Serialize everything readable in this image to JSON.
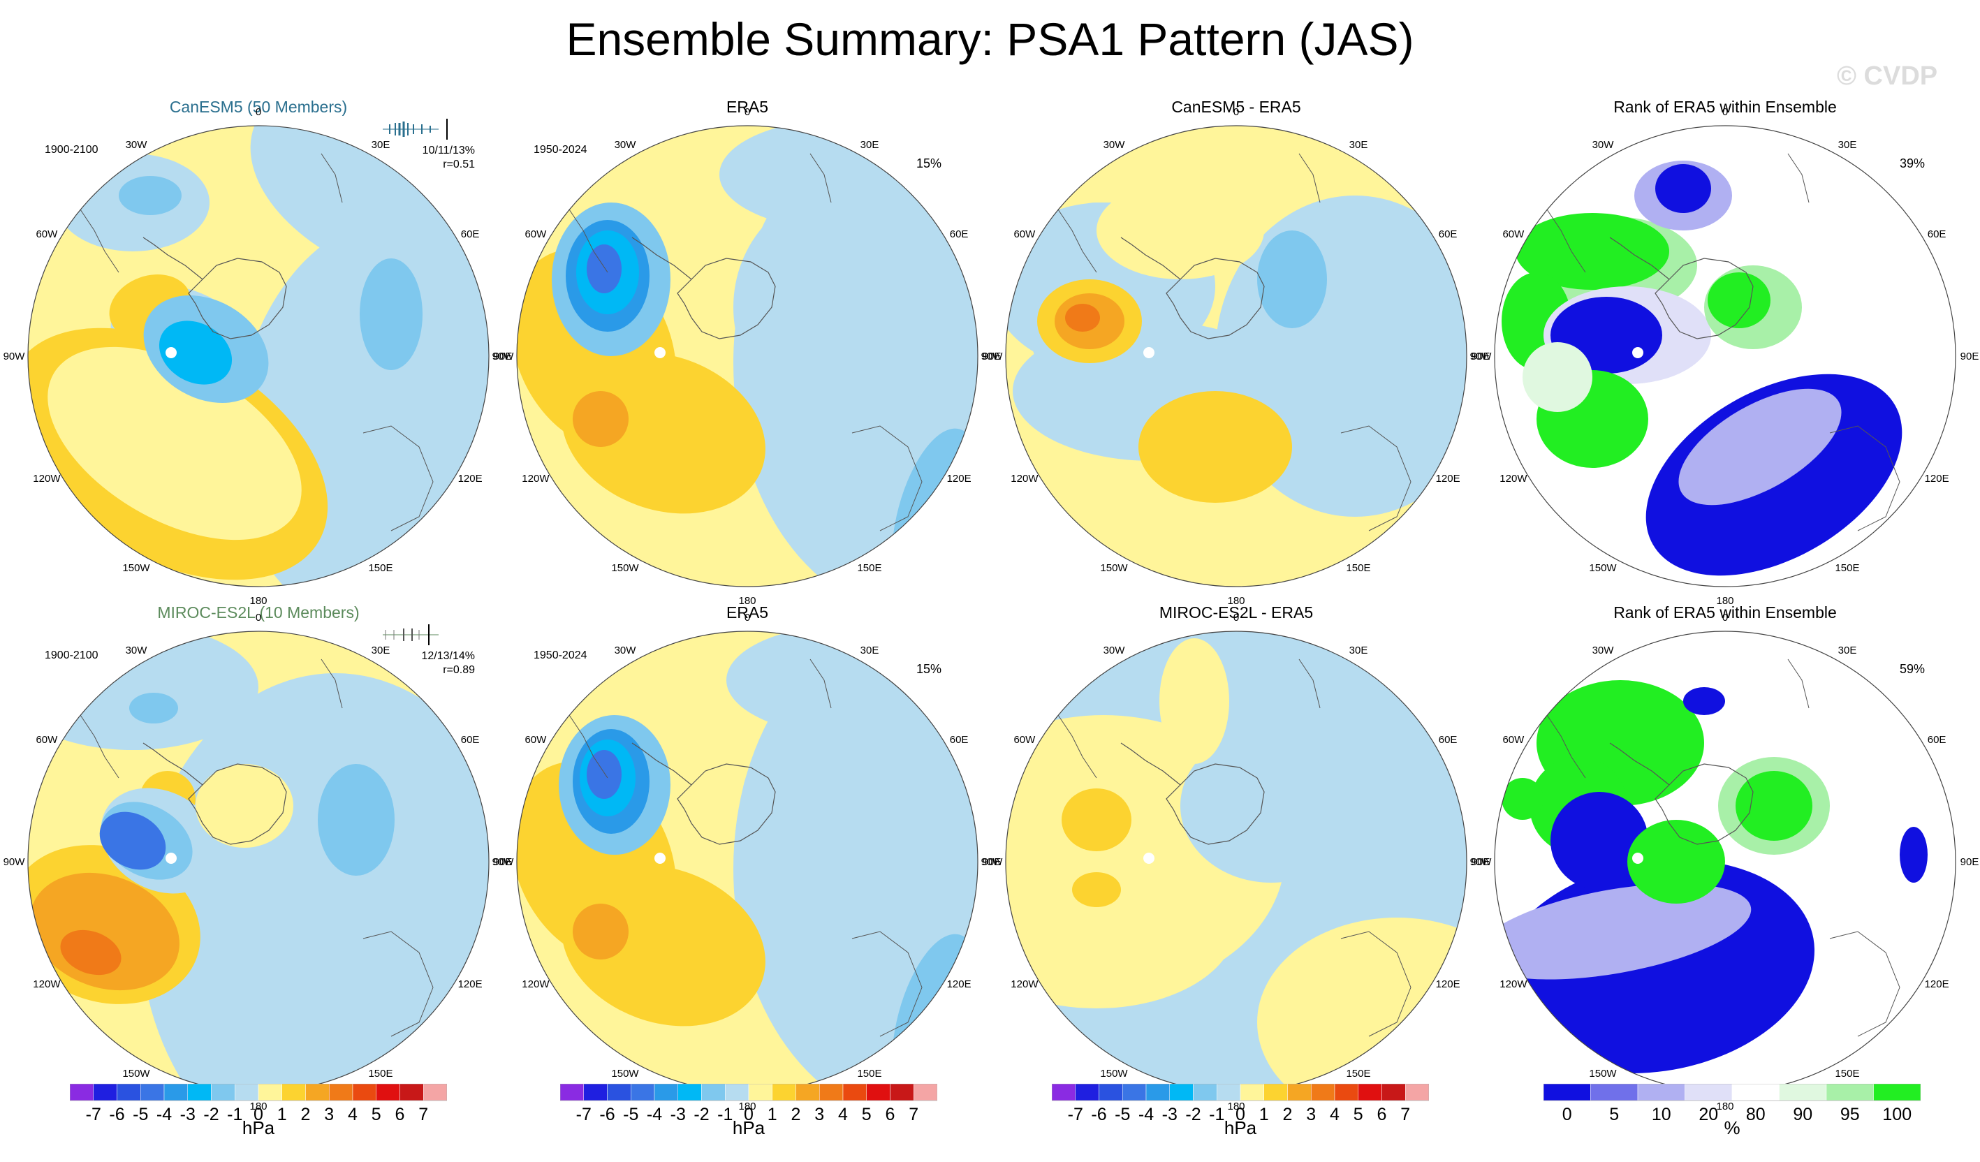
{
  "figure": {
    "title": "Ensemble Summary: PSA1 Pattern (JAS)",
    "watermark": "© CVDP"
  },
  "longitude_labels": [
    "0",
    "30E",
    "60E",
    "90E",
    "120E",
    "150E",
    "180",
    "150W",
    "120W",
    "90W",
    "60W",
    "30W"
  ],
  "rows": [
    {
      "model_title": "CanESM5 (50 Members)",
      "model_years": "1900-2100",
      "model_stats_line1": "10/11/13%",
      "model_stats_line2": "r=0.51",
      "obs_title": "ERA5",
      "obs_years": "1950-2024",
      "obs_pct": "15%",
      "diff_title": "CanESM5 - ERA5",
      "rank_title": "Rank of ERA5 within Ensemble",
      "rank_pct": "39%"
    },
    {
      "model_title": "MIROC-ES2L (10 Members)",
      "model_years": "1900-2100",
      "model_stats_line1": "12/13/14%",
      "model_stats_line2": "r=0.89",
      "obs_title": "ERA5",
      "obs_years": "1950-2024",
      "obs_pct": "15%",
      "diff_title": "MIROC-ES2L - ERA5",
      "rank_title": "Rank of ERA5 within Ensemble",
      "rank_pct": "59%"
    }
  ],
  "colorbars": {
    "hpa": {
      "unit": "hPa",
      "labels": [
        "-7",
        "-6",
        "-5",
        "-4",
        "-3",
        "-2",
        "-1",
        "0",
        "1",
        "2",
        "3",
        "4",
        "5",
        "6",
        "7"
      ],
      "colors": [
        "#8a2be2",
        "#1f1fe0",
        "#2a52e0",
        "#3a75e5",
        "#2a9ae8",
        "#00b8f5",
        "#7fc8ee",
        "#b6dcf0",
        "#fff59a",
        "#fcd330",
        "#f5a623",
        "#f07a18",
        "#ea4a10",
        "#e01010",
        "#c81818",
        "#f4a5a5"
      ]
    },
    "rank": {
      "unit": "%",
      "labels": [
        "0",
        "5",
        "10",
        "20",
        "80",
        "90",
        "95",
        "100"
      ],
      "colors": [
        "#1010e0",
        "#7070ea",
        "#b0b0f2",
        "#e0e0f8",
        "#ffffff",
        "#e0f8e0",
        "#a8f0a8",
        "#22ee22"
      ]
    }
  },
  "chart_data": [
    {
      "type": "heatmap",
      "projection": "south polar stereographic",
      "title": "CanESM5 (50 Members)",
      "period": "1900-2100",
      "units": "hPa",
      "stats": "10/11/13%",
      "pattern_correlation": 0.51
    },
    {
      "type": "heatmap",
      "projection": "south polar stereographic",
      "title": "ERA5",
      "period": "1950-2024",
      "units": "hPa",
      "variance_explained": "15%"
    },
    {
      "type": "heatmap",
      "projection": "south polar stereographic",
      "title": "CanESM5 - ERA5",
      "units": "hPa"
    },
    {
      "type": "heatmap",
      "projection": "south polar stereographic",
      "title": "Rank of ERA5 within Ensemble",
      "units": "%",
      "value": "39%"
    },
    {
      "type": "heatmap",
      "projection": "south polar stereographic",
      "title": "MIROC-ES2L (10 Members)",
      "period": "1900-2100",
      "units": "hPa",
      "stats": "12/13/14%",
      "pattern_correlation": 0.89
    },
    {
      "type": "heatmap",
      "projection": "south polar stereographic",
      "title": "ERA5",
      "period": "1950-2024",
      "units": "hPa",
      "variance_explained": "15%"
    },
    {
      "type": "heatmap",
      "projection": "south polar stereographic",
      "title": "MIROC-ES2L - ERA5",
      "units": "hPa"
    },
    {
      "type": "heatmap",
      "projection": "south polar stereographic",
      "title": "Rank of ERA5 within Ensemble",
      "units": "%",
      "value": "59%"
    }
  ]
}
